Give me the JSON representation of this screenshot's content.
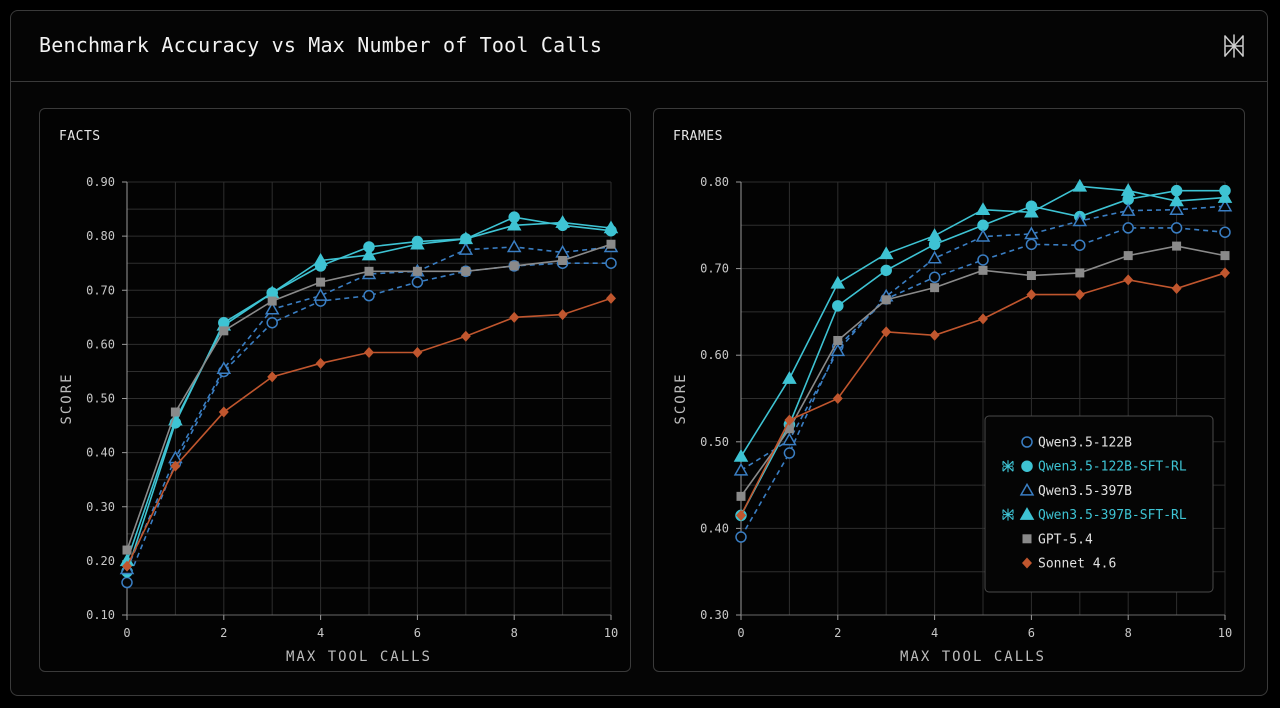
{
  "header": {
    "title": "Benchmark Accuracy vs Max Number of Tool Calls",
    "logo_icon": "spider-logo-icon"
  },
  "colors": {
    "teal": "#3ec3d3",
    "blue_dashed": "#3a7ec3",
    "gray": "#8a8a8a",
    "orange": "#c0562e",
    "grid": "#2e2e2e"
  },
  "legend": {
    "placement": "bottom-right of FRAMES panel",
    "items": [
      {
        "label": "Qwen3.5-122B",
        "marker": "circle-open",
        "logo": false
      },
      {
        "label": "Qwen3.5-122B-SFT-RL",
        "marker": "circle-filled",
        "logo": true
      },
      {
        "label": "Qwen3.5-397B",
        "marker": "triangle-open",
        "logo": false
      },
      {
        "label": "Qwen3.5-397B-SFT-RL",
        "marker": "triangle-filled",
        "logo": true
      },
      {
        "label": "GPT-5.4",
        "marker": "square",
        "logo": false
      },
      {
        "label": "Sonnet 4.6",
        "marker": "diamond",
        "logo": false
      }
    ]
  },
  "chart_data": [
    {
      "type": "line",
      "title": "FACTS",
      "xlabel": "MAX TOOL CALLS",
      "ylabel": "SCORE",
      "x": [
        0,
        1,
        2,
        3,
        4,
        5,
        6,
        7,
        8,
        9,
        10
      ],
      "xticks": [
        "0",
        "2",
        "4",
        "6",
        "8",
        "10"
      ],
      "yticks": [
        "0.10",
        "0.20",
        "0.30",
        "0.40",
        "0.50",
        "0.60",
        "0.70",
        "0.80",
        "0.90"
      ],
      "ylim": [
        0.1,
        0.9
      ],
      "xlim": [
        0,
        10
      ],
      "grid": true,
      "series": [
        {
          "name": "Qwen3.5-122B",
          "values": [
            0.16,
            0.38,
            0.55,
            0.64,
            0.68,
            0.69,
            0.715,
            0.735,
            0.745,
            0.75,
            0.75
          ]
        },
        {
          "name": "Qwen3.5-122B-SFT-RL",
          "values": [
            0.18,
            0.455,
            0.64,
            0.695,
            0.745,
            0.78,
            0.79,
            0.795,
            0.835,
            0.82,
            0.81
          ]
        },
        {
          "name": "Qwen3.5-397B",
          "values": [
            0.185,
            0.39,
            0.555,
            0.665,
            0.69,
            0.73,
            0.735,
            0.775,
            0.78,
            0.77,
            0.78
          ]
        },
        {
          "name": "Qwen3.5-397B-SFT-RL",
          "values": [
            0.2,
            0.46,
            0.635,
            0.695,
            0.755,
            0.765,
            0.785,
            0.795,
            0.82,
            0.825,
            0.815
          ]
        },
        {
          "name": "GPT-5.4",
          "values": [
            0.22,
            0.475,
            0.625,
            0.68,
            0.715,
            0.735,
            0.735,
            0.735,
            0.745,
            0.755,
            0.785
          ]
        },
        {
          "name": "Sonnet 4.6",
          "values": [
            0.19,
            0.375,
            0.475,
            0.54,
            0.565,
            0.585,
            0.585,
            0.615,
            0.65,
            0.655,
            0.685
          ]
        }
      ]
    },
    {
      "type": "line",
      "title": "FRAMES",
      "xlabel": "MAX TOOL CALLS",
      "ylabel": "SCORE",
      "x": [
        0,
        1,
        2,
        3,
        4,
        5,
        6,
        7,
        8,
        9,
        10
      ],
      "xticks": [
        "0",
        "2",
        "4",
        "6",
        "8",
        "10"
      ],
      "yticks": [
        "0.30",
        "0.40",
        "0.50",
        "0.60",
        "0.70",
        "0.80"
      ],
      "ylim": [
        0.3,
        0.8
      ],
      "xlim": [
        0,
        10
      ],
      "grid": true,
      "series": [
        {
          "name": "Qwen3.5-122B",
          "values": [
            0.39,
            0.487,
            0.61,
            0.665,
            0.69,
            0.71,
            0.728,
            0.727,
            0.747,
            0.747,
            0.742
          ]
        },
        {
          "name": "Qwen3.5-122B-SFT-RL",
          "values": [
            0.415,
            0.52,
            0.657,
            0.698,
            0.728,
            0.75,
            0.772,
            0.76,
            0.78,
            0.79,
            0.79
          ]
        },
        {
          "name": "Qwen3.5-397B",
          "values": [
            0.467,
            0.502,
            0.605,
            0.668,
            0.712,
            0.737,
            0.74,
            0.755,
            0.767,
            0.768,
            0.772
          ]
        },
        {
          "name": "Qwen3.5-397B-SFT-RL",
          "values": [
            0.483,
            0.573,
            0.683,
            0.717,
            0.738,
            0.768,
            0.765,
            0.795,
            0.79,
            0.778,
            0.782
          ]
        },
        {
          "name": "GPT-5.4",
          "values": [
            0.437,
            0.515,
            0.617,
            0.664,
            0.678,
            0.698,
            0.692,
            0.695,
            0.715,
            0.726,
            0.715
          ]
        },
        {
          "name": "Sonnet 4.6",
          "values": [
            0.415,
            0.525,
            0.55,
            0.627,
            0.623,
            0.642,
            0.67,
            0.67,
            0.687,
            0.677,
            0.695
          ]
        }
      ]
    }
  ]
}
